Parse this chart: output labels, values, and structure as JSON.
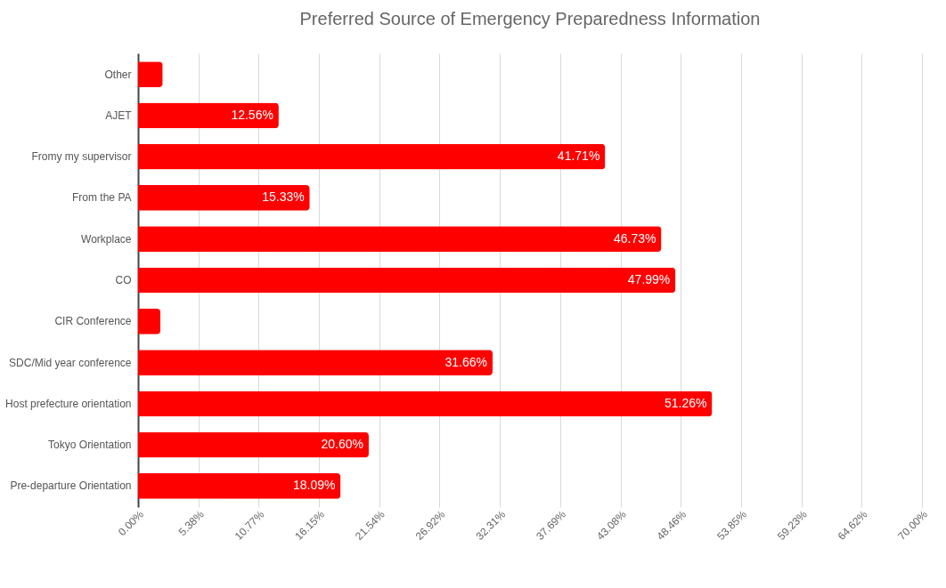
{
  "chart_data": {
    "type": "bar",
    "orientation": "horizontal",
    "title": "Preferred Source of Emergency Preparedness Information",
    "categories": [
      "Other",
      "AJET",
      "Fromy my supervisor",
      "From the PA",
      "Workplace",
      "CO",
      "CIR Conference",
      "SDC/Mid year conference",
      "Host prefecture orientation",
      "Tokyo Orientation",
      "Pre-departure Orientation"
    ],
    "values": [
      2.2,
      12.56,
      41.71,
      15.33,
      46.73,
      47.99,
      2.0,
      31.66,
      51.26,
      20.6,
      18.09
    ],
    "value_labels": [
      null,
      "12.56%",
      "41.71%",
      "15.33%",
      "46.73%",
      "47.99%",
      null,
      "31.66%",
      "51.26%",
      "20.60%",
      "18.09%"
    ],
    "color": "#ff0000",
    "xlim": [
      0,
      70
    ],
    "xticks": [
      {
        "value": 0,
        "label": "0.00%"
      },
      {
        "value": 5.38,
        "label": "5.38%"
      },
      {
        "value": 10.77,
        "label": "10.77%"
      },
      {
        "value": 16.15,
        "label": "16.15%"
      },
      {
        "value": 21.54,
        "label": "21.54%"
      },
      {
        "value": 26.92,
        "label": "26.92%"
      },
      {
        "value": 32.31,
        "label": "32.31%"
      },
      {
        "value": 37.69,
        "label": "37.69%"
      },
      {
        "value": 43.08,
        "label": "43.08%"
      },
      {
        "value": 48.46,
        "label": "48.46%"
      },
      {
        "value": 53.85,
        "label": "53.85%"
      },
      {
        "value": 59.23,
        "label": "59.23%"
      },
      {
        "value": 64.62,
        "label": "64.62%"
      },
      {
        "value": 70,
        "label": "70.00%"
      }
    ],
    "grid": "x"
  }
}
